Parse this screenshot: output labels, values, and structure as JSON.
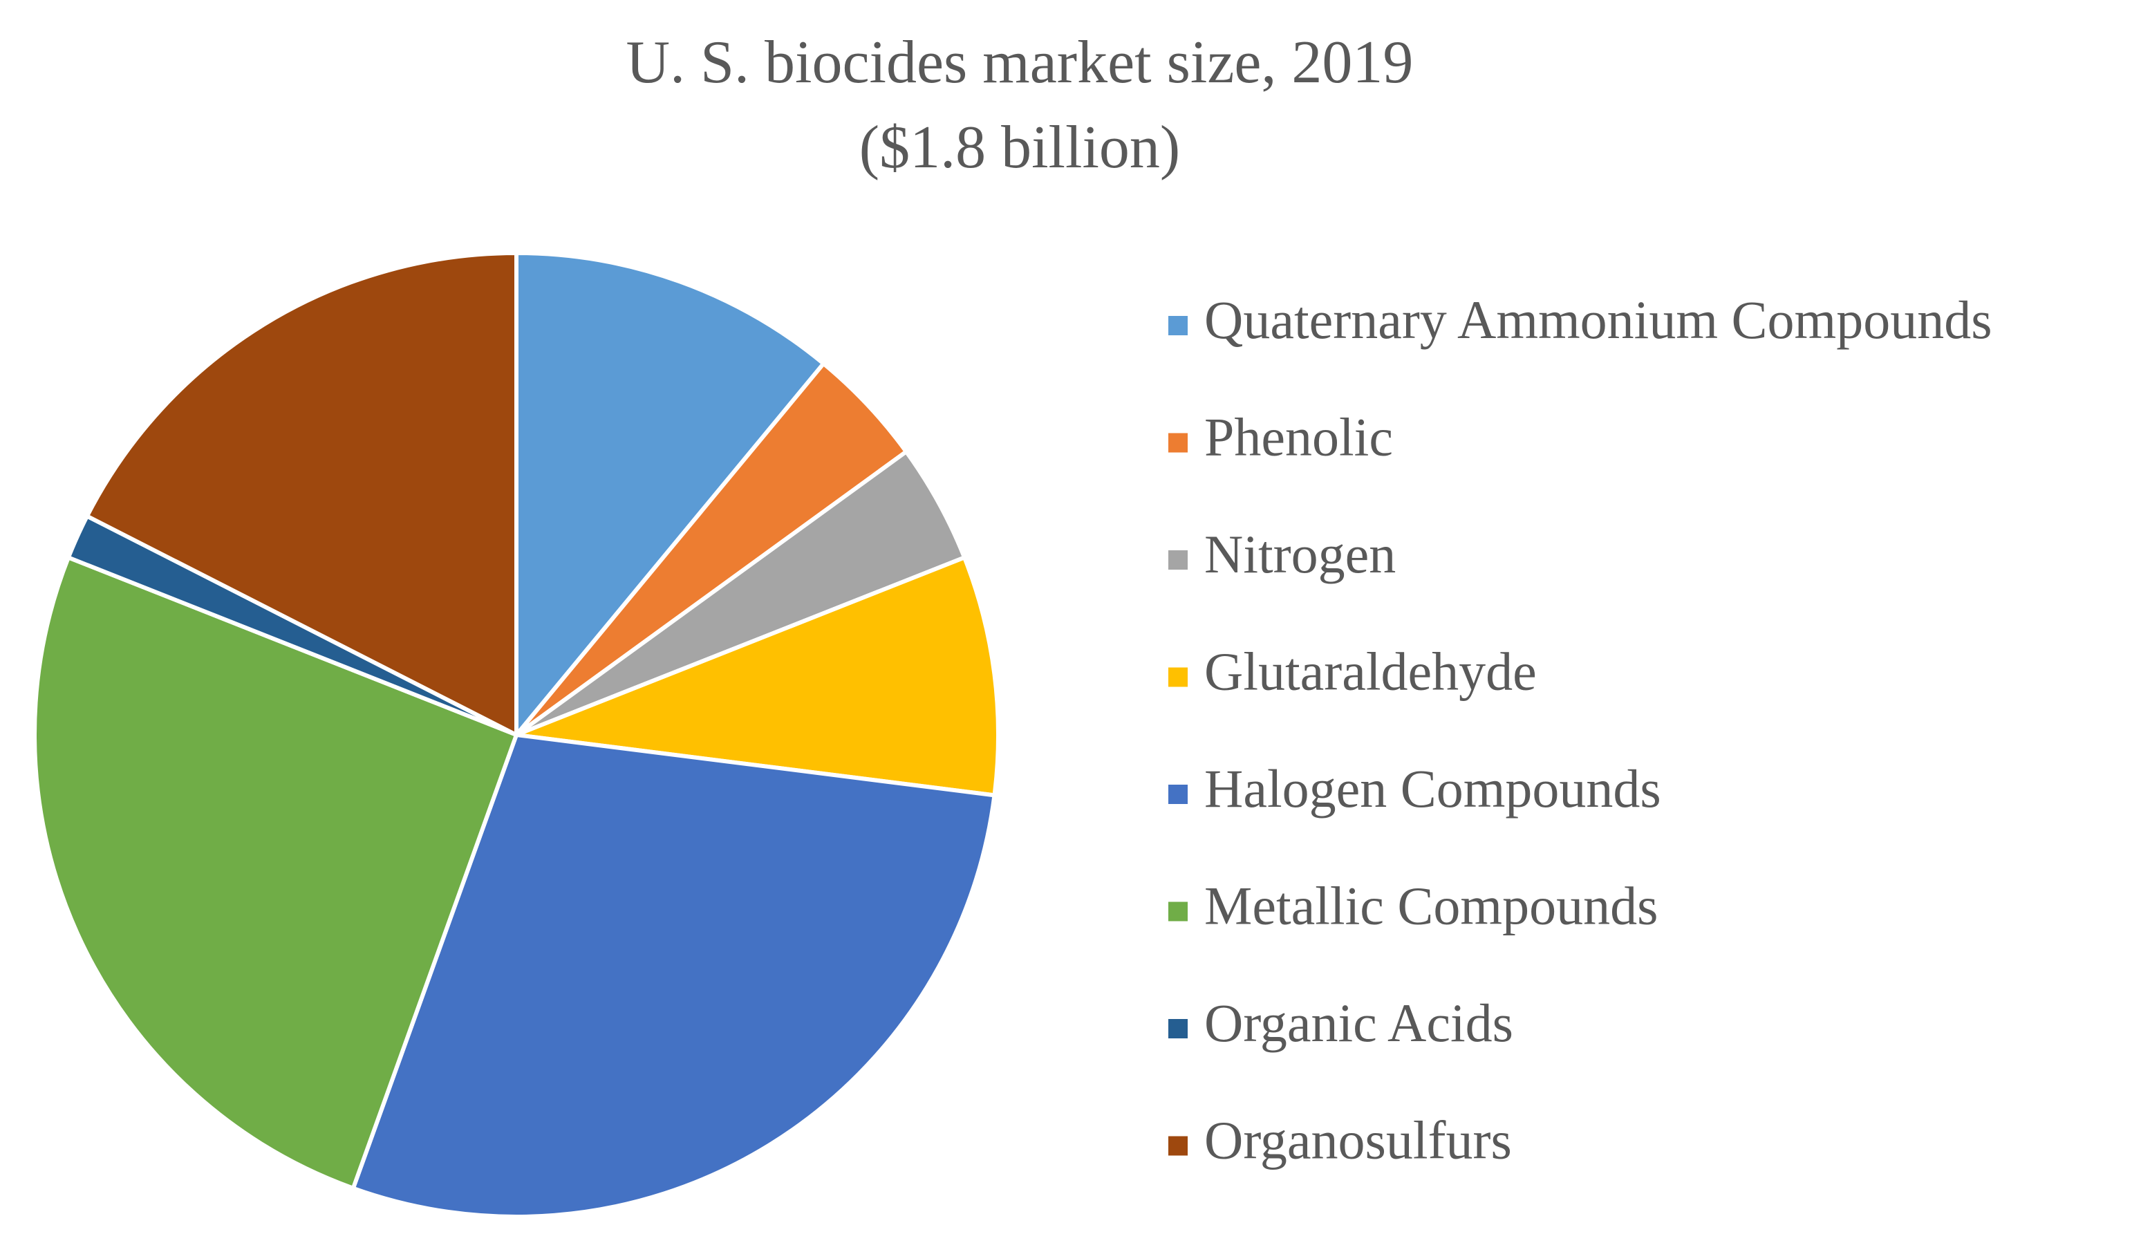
{
  "chart_data": {
    "type": "pie",
    "title": "U. S. biocides market size, 2019",
    "subtitle": "($1.8 billion)",
    "categories": [
      "Quaternary Ammonium Compounds",
      "Phenolic",
      "Nitrogen",
      "Glutaraldehyde",
      "Halogen Compounds",
      "Metallic Compounds",
      "Organic Acids",
      "Organosulfurs"
    ],
    "values": [
      11,
      4,
      4,
      8,
      28.5,
      25.5,
      1.5,
      17.5
    ],
    "colors": [
      "#5b9bd5",
      "#ed7d31",
      "#a5a5a5",
      "#ffc000",
      "#4472c4",
      "#70ad47",
      "#255e91",
      "#9e480e"
    ],
    "legend": "right"
  }
}
